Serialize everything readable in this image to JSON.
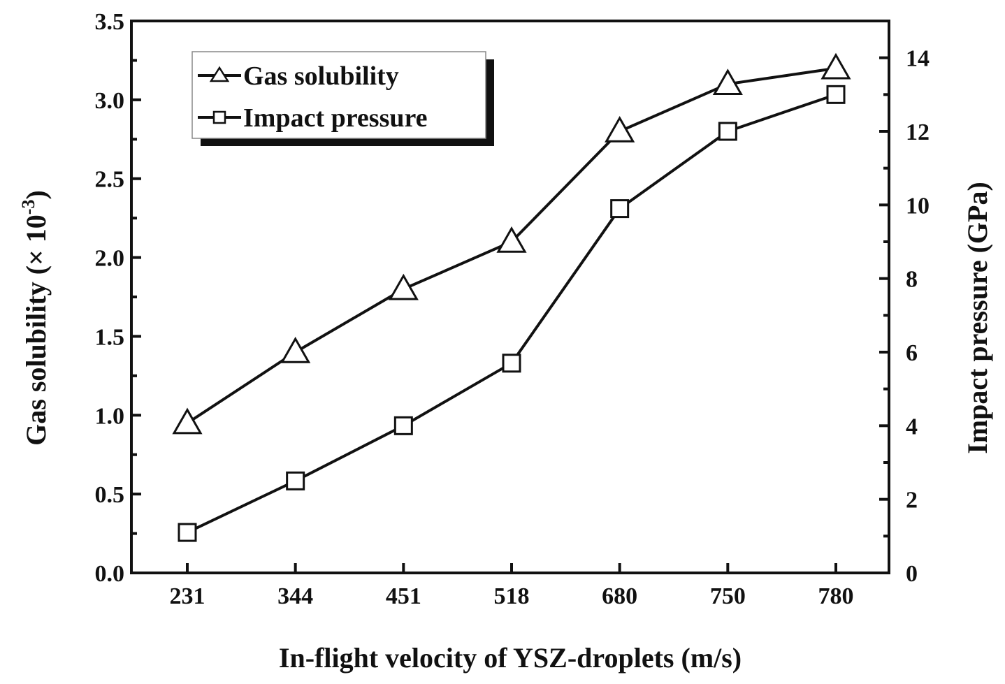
{
  "chart_data": {
    "type": "line",
    "categories": [
      "231",
      "344",
      "451",
      "518",
      "680",
      "750",
      "780"
    ],
    "xlabel": "In-flight velocity of YSZ-droplets (m/s)",
    "ylabel_left": "Gas solubility (× 10",
    "ylabel_left_exp": "-3",
    "ylabel_left_close": ")",
    "ylabel_right": "Impact pressure (GPa)",
    "ylim_left": [
      0,
      3.5
    ],
    "ylim_right": [
      0,
      15
    ],
    "yticks_left": [
      "0.0",
      "0.5",
      "1.0",
      "1.5",
      "2.0",
      "2.5",
      "3.0",
      "3.5"
    ],
    "yticks_right": [
      "0",
      "2",
      "4",
      "6",
      "8",
      "10",
      "12",
      "14"
    ],
    "series": [
      {
        "name": "Gas solubility",
        "axis": "left",
        "marker": "triangle",
        "values": [
          0.95,
          1.4,
          1.8,
          2.1,
          2.8,
          3.1,
          3.2
        ]
      },
      {
        "name": "Impact pressure",
        "axis": "right",
        "marker": "square",
        "values": [
          1.1,
          2.5,
          4.0,
          5.7,
          9.9,
          12.0,
          13.0
        ]
      }
    ],
    "legend": "top-left",
    "grid": false,
    "colors": {
      "line": "#111111",
      "marker_fill": "#ffffff"
    }
  }
}
